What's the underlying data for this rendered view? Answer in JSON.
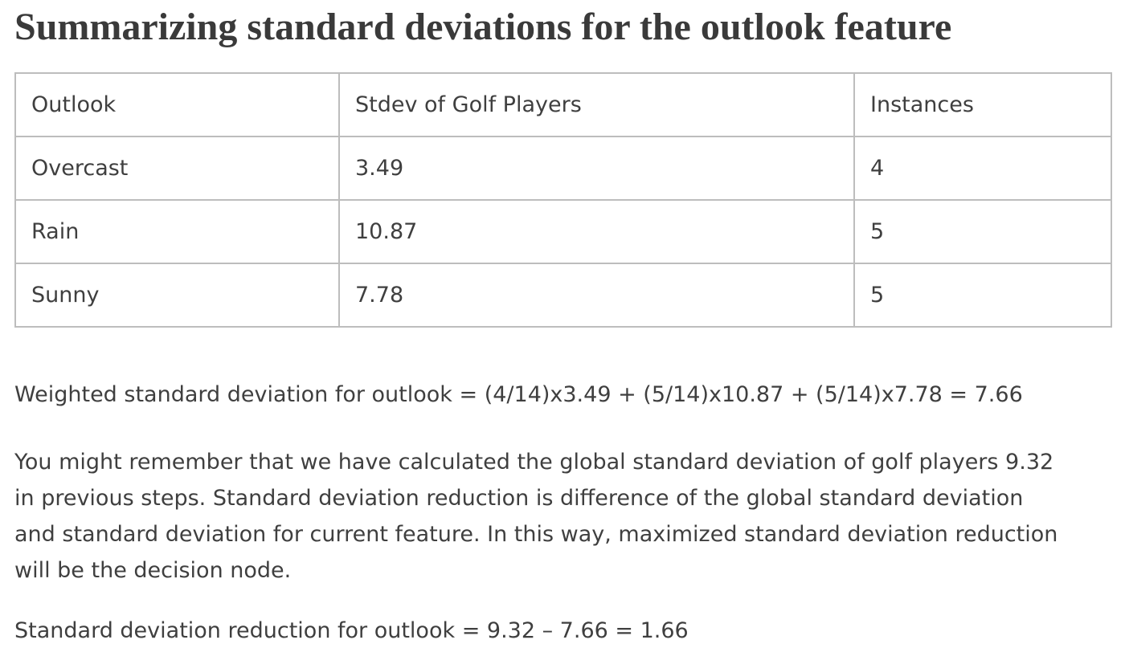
{
  "title": "Summarizing standard deviations for the outlook feature",
  "table": {
    "headers": [
      "Outlook",
      "Stdev of Golf Players",
      "Instances"
    ],
    "rows": [
      [
        "Overcast",
        "3.49",
        "4"
      ],
      [
        "Rain",
        "10.87",
        "5"
      ],
      [
        "Sunny",
        "7.78",
        "5"
      ]
    ]
  },
  "weighted_formula": "Weighted standard deviation for outlook = (4/14)x3.49 + (5/14)x10.87 + (5/14)x7.78 = 7.66",
  "paragraph": {
    "lines": [
      "You might remember that we have calculated the global standard deviation of golf players 9.32",
      "in previous steps. Standard deviation reduction is difference of the global standard deviation",
      "and standard deviation for current feature. In this way, maximized standard deviation reduction",
      "will be the decision node."
    ]
  },
  "reduction_formula": "Standard deviation reduction for outlook = 9.32 – 7.66 = 1.66"
}
